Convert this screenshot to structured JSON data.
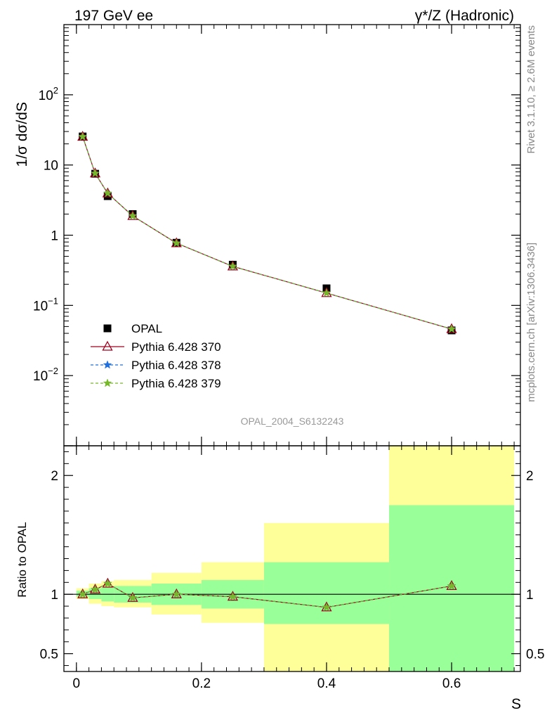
{
  "header": {
    "left": "197 GeV ee",
    "right": "γ*/Z (Hadronic)"
  },
  "side_labels": {
    "rivet": "Rivet 3.1.10, ≥ 2.6M events",
    "mcplots": "mcplots.cern.ch [arXiv:1306.3436]"
  },
  "watermark": "OPAL_2004_S6132243",
  "legend": [
    {
      "label": "OPAL",
      "marker": "square",
      "color": "#000000"
    },
    {
      "label": "Pythia 6.428 370",
      "marker": "triangle",
      "color": "#a0001e"
    },
    {
      "label": "Pythia 6.428 378",
      "marker": "star",
      "color": "#1f6fdc"
    },
    {
      "label": "Pythia 6.428 379",
      "marker": "star",
      "color": "#76b82a"
    }
  ],
  "colors": {
    "band_inner": "#99ff99",
    "band_outer": "#ffff99"
  },
  "chart_data": [
    {
      "type": "line",
      "panel": "main",
      "ylabel": "1/σ dσ/dS",
      "yscale": "log",
      "ylim": [
        0.001,
        1000
      ],
      "xlim": [
        -0.02,
        0.71
      ],
      "ytick_labels": [
        "10^-2",
        "10^-1",
        "1",
        "10",
        "10^2"
      ],
      "x": [
        0.01,
        0.03,
        0.05,
        0.09,
        0.16,
        0.25,
        0.4,
        0.6
      ],
      "series": [
        {
          "name": "OPAL",
          "values": [
            25.5,
            7.5,
            3.6,
            2.0,
            0.78,
            0.38,
            0.175,
            0.044
          ]
        },
        {
          "name": "Pythia 6.428 370",
          "values": [
            25.3,
            7.6,
            3.95,
            1.88,
            0.77,
            0.36,
            0.15,
            0.046
          ]
        },
        {
          "name": "Pythia 6.428 378",
          "values": [
            25.3,
            7.6,
            3.95,
            1.88,
            0.77,
            0.36,
            0.15,
            0.046
          ]
        },
        {
          "name": "Pythia 6.428 379",
          "values": [
            25.3,
            7.6,
            3.95,
            1.88,
            0.77,
            0.36,
            0.15,
            0.046
          ]
        }
      ]
    },
    {
      "type": "line",
      "panel": "ratio",
      "ylabel": "Ratio to OPAL",
      "xlabel": "S",
      "ylim": [
        0.35,
        2.25
      ],
      "xlim": [
        -0.02,
        0.71
      ],
      "xtick_labels": [
        "0",
        "0.2",
        "0.4",
        "0.6"
      ],
      "ytick_labels": [
        "0.5",
        "1",
        "2"
      ],
      "x": [
        0.01,
        0.03,
        0.05,
        0.09,
        0.16,
        0.25,
        0.4,
        0.6
      ],
      "series": [
        {
          "name": "Pythia 6.428 370",
          "values": [
            1.0,
            1.04,
            1.09,
            0.97,
            1.0,
            0.98,
            0.89,
            1.07
          ]
        },
        {
          "name": "Pythia 6.428 378",
          "values": [
            1.0,
            1.04,
            1.09,
            0.97,
            1.0,
            0.98,
            0.89,
            1.07
          ]
        },
        {
          "name": "Pythia 6.428 379",
          "values": [
            1.0,
            1.04,
            1.09,
            0.97,
            1.0,
            0.98,
            0.89,
            1.07
          ]
        }
      ],
      "uncertainty_bands": [
        {
          "x0": 0.0,
          "x1": 0.02,
          "inner": [
            0.98,
            1.03
          ],
          "outer": [
            0.96,
            1.05
          ]
        },
        {
          "x0": 0.02,
          "x1": 0.04,
          "inner": [
            0.96,
            1.05
          ],
          "outer": [
            0.92,
            1.09
          ]
        },
        {
          "x0": 0.04,
          "x1": 0.06,
          "inner": [
            0.94,
            1.06
          ],
          "outer": [
            0.9,
            1.11
          ]
        },
        {
          "x0": 0.06,
          "x1": 0.12,
          "inner": [
            0.93,
            1.07
          ],
          "outer": [
            0.89,
            1.12
          ]
        },
        {
          "x0": 0.12,
          "x1": 0.2,
          "inner": [
            0.91,
            1.09
          ],
          "outer": [
            0.83,
            1.18
          ]
        },
        {
          "x0": 0.2,
          "x1": 0.3,
          "inner": [
            0.88,
            1.12
          ],
          "outer": [
            0.76,
            1.27
          ]
        },
        {
          "x0": 0.3,
          "x1": 0.5,
          "inner": [
            0.75,
            1.27
          ],
          "outer": [
            0.35,
            1.6
          ]
        },
        {
          "x0": 0.5,
          "x1": 0.7,
          "inner": [
            0.35,
            1.75
          ],
          "outer": [
            0.35,
            2.25
          ]
        }
      ]
    }
  ]
}
